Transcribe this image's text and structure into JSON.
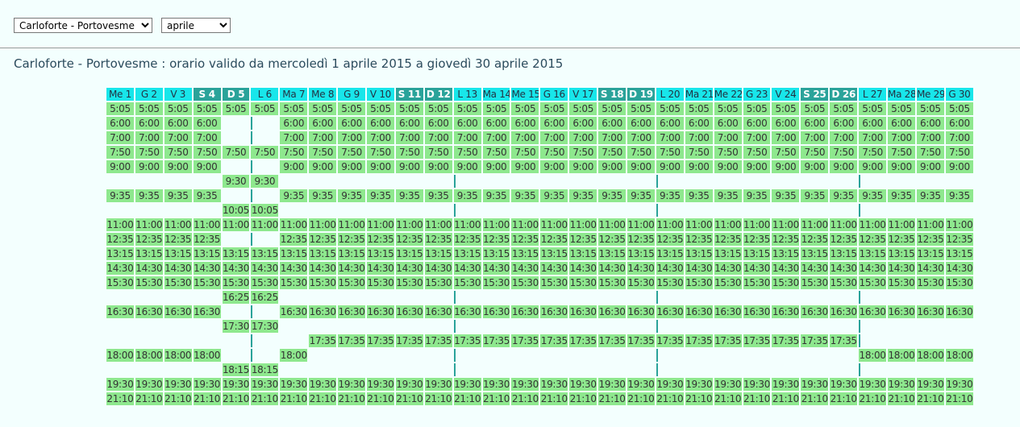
{
  "controls": {
    "route": "Carloforte - Portovesme",
    "month": "aprile"
  },
  "title": "Carloforte - Portovesme : orario valido da mercoledì 1 aprile 2015 a giovedì 30 aprile 2015",
  "table": {
    "columns": [
      "Me 1",
      "G 2",
      "V 3",
      "S 4",
      "D 5",
      "L 6",
      "Ma 7",
      "Me 8",
      "G 9",
      "V 10",
      "S 11",
      "D 12",
      "L 13",
      "Ma 14",
      "Me 15",
      "G 16",
      "V 17",
      "S 18",
      "D 19",
      "L 20",
      "Ma 21",
      "Me 22",
      "G 23",
      "V 24",
      "S 25",
      "D 26",
      "L 27",
      "Ma 28",
      "Me 29",
      "G 30"
    ],
    "rows": [
      [
        "5:05",
        "5:05",
        "5:05",
        "5:05",
        "5:05",
        "5:05",
        "5:05",
        "5:05",
        "5:05",
        "5:05",
        "5:05",
        "5:05",
        "5:05",
        "5:05",
        "5:05",
        "5:05",
        "5:05",
        "5:05",
        "5:05",
        "5:05",
        "5:05",
        "5:05",
        "5:05",
        "5:05",
        "5:05",
        "5:05",
        "5:05",
        "5:05",
        "5:05",
        "5:05"
      ],
      [
        "6:00",
        "6:00",
        "6:00",
        "6:00",
        null,
        null,
        "6:00",
        "6:00",
        "6:00",
        "6:00",
        "6:00",
        "6:00",
        "6:00",
        "6:00",
        "6:00",
        "6:00",
        "6:00",
        "6:00",
        "6:00",
        "6:00",
        "6:00",
        "6:00",
        "6:00",
        "6:00",
        "6:00",
        "6:00",
        "6:00",
        "6:00",
        "6:00",
        "6:00"
      ],
      [
        "7:00",
        "7:00",
        "7:00",
        "7:00",
        null,
        null,
        "7:00",
        "7:00",
        "7:00",
        "7:00",
        "7:00",
        "7:00",
        "7:00",
        "7:00",
        "7:00",
        "7:00",
        "7:00",
        "7:00",
        "7:00",
        "7:00",
        "7:00",
        "7:00",
        "7:00",
        "7:00",
        "7:00",
        "7:00",
        "7:00",
        "7:00",
        "7:00",
        "7:00"
      ],
      [
        "7:50",
        "7:50",
        "7:50",
        "7:50",
        "7:50",
        "7:50",
        "7:50",
        "7:50",
        "7:50",
        "7:50",
        "7:50",
        "7:50",
        "7:50",
        "7:50",
        "7:50",
        "7:50",
        "7:50",
        "7:50",
        "7:50",
        "7:50",
        "7:50",
        "7:50",
        "7:50",
        "7:50",
        "7:50",
        "7:50",
        "7:50",
        "7:50",
        "7:50",
        "7:50"
      ],
      [
        "9:00",
        "9:00",
        "9:00",
        "9:00",
        null,
        null,
        "9:00",
        "9:00",
        "9:00",
        "9:00",
        "9:00",
        "9:00",
        "9:00",
        "9:00",
        "9:00",
        "9:00",
        "9:00",
        "9:00",
        "9:00",
        "9:00",
        "9:00",
        "9:00",
        "9:00",
        "9:00",
        "9:00",
        "9:00",
        "9:00",
        "9:00",
        "9:00",
        "9:00"
      ],
      [
        null,
        null,
        null,
        null,
        "9:30",
        "9:30",
        null,
        null,
        null,
        null,
        null,
        null,
        null,
        null,
        null,
        null,
        null,
        null,
        null,
        null,
        null,
        null,
        null,
        null,
        null,
        null,
        null,
        null,
        null,
        null
      ],
      [
        "9:35",
        "9:35",
        "9:35",
        "9:35",
        null,
        null,
        "9:35",
        "9:35",
        "9:35",
        "9:35",
        "9:35",
        "9:35",
        "9:35",
        "9:35",
        "9:35",
        "9:35",
        "9:35",
        "9:35",
        "9:35",
        "9:35",
        "9:35",
        "9:35",
        "9:35",
        "9:35",
        "9:35",
        "9:35",
        "9:35",
        "9:35",
        "9:35",
        "9:35"
      ],
      [
        null,
        null,
        null,
        null,
        "10:05",
        "10:05",
        null,
        null,
        null,
        null,
        null,
        null,
        null,
        null,
        null,
        null,
        null,
        null,
        null,
        null,
        null,
        null,
        null,
        null,
        null,
        null,
        null,
        null,
        null,
        null
      ],
      [
        "11:00",
        "11:00",
        "11:00",
        "11:00",
        "11:00",
        "11:00",
        "11:00",
        "11:00",
        "11:00",
        "11:00",
        "11:00",
        "11:00",
        "11:00",
        "11:00",
        "11:00",
        "11:00",
        "11:00",
        "11:00",
        "11:00",
        "11:00",
        "11:00",
        "11:00",
        "11:00",
        "11:00",
        "11:00",
        "11:00",
        "11:00",
        "11:00",
        "11:00",
        "11:00"
      ],
      [
        "12:35",
        "12:35",
        "12:35",
        "12:35",
        null,
        null,
        "12:35",
        "12:35",
        "12:35",
        "12:35",
        "12:35",
        "12:35",
        "12:35",
        "12:35",
        "12:35",
        "12:35",
        "12:35",
        "12:35",
        "12:35",
        "12:35",
        "12:35",
        "12:35",
        "12:35",
        "12:35",
        "12:35",
        "12:35",
        "12:35",
        "12:35",
        "12:35",
        "12:35"
      ],
      [
        "13:15",
        "13:15",
        "13:15",
        "13:15",
        "13:15",
        "13:15",
        "13:15",
        "13:15",
        "13:15",
        "13:15",
        "13:15",
        "13:15",
        "13:15",
        "13:15",
        "13:15",
        "13:15",
        "13:15",
        "13:15",
        "13:15",
        "13:15",
        "13:15",
        "13:15",
        "13:15",
        "13:15",
        "13:15",
        "13:15",
        "13:15",
        "13:15",
        "13:15",
        "13:15"
      ],
      [
        "14:30",
        "14:30",
        "14:30",
        "14:30",
        "14:30",
        "14:30",
        "14:30",
        "14:30",
        "14:30",
        "14:30",
        "14:30",
        "14:30",
        "14:30",
        "14:30",
        "14:30",
        "14:30",
        "14:30",
        "14:30",
        "14:30",
        "14:30",
        "14:30",
        "14:30",
        "14:30",
        "14:30",
        "14:30",
        "14:30",
        "14:30",
        "14:30",
        "14:30",
        "14:30"
      ],
      [
        "15:30",
        "15:30",
        "15:30",
        "15:30",
        "15:30",
        "15:30",
        "15:30",
        "15:30",
        "15:30",
        "15:30",
        "15:30",
        "15:30",
        "15:30",
        "15:30",
        "15:30",
        "15:30",
        "15:30",
        "15:30",
        "15:30",
        "15:30",
        "15:30",
        "15:30",
        "15:30",
        "15:30",
        "15:30",
        "15:30",
        "15:30",
        "15:30",
        "15:30",
        "15:30"
      ],
      [
        null,
        null,
        null,
        null,
        "16:25",
        "16:25",
        null,
        null,
        null,
        null,
        null,
        null,
        null,
        null,
        null,
        null,
        null,
        null,
        null,
        null,
        null,
        null,
        null,
        null,
        null,
        null,
        null,
        null,
        null,
        null
      ],
      [
        "16:30",
        "16:30",
        "16:30",
        "16:30",
        null,
        null,
        "16:30",
        "16:30",
        "16:30",
        "16:30",
        "16:30",
        "16:30",
        "16:30",
        "16:30",
        "16:30",
        "16:30",
        "16:30",
        "16:30",
        "16:30",
        "16:30",
        "16:30",
        "16:30",
        "16:30",
        "16:30",
        "16:30",
        "16:30",
        "16:30",
        "16:30",
        "16:30",
        "16:30"
      ],
      [
        null,
        null,
        null,
        null,
        "17:30",
        "17:30",
        null,
        null,
        null,
        null,
        null,
        null,
        null,
        null,
        null,
        null,
        null,
        null,
        null,
        null,
        null,
        null,
        null,
        null,
        null,
        null,
        null,
        null,
        null,
        null
      ],
      [
        null,
        null,
        null,
        null,
        null,
        null,
        null,
        "17:35",
        "17:35",
        "17:35",
        "17:35",
        "17:35",
        "17:35",
        "17:35",
        "17:35",
        "17:35",
        "17:35",
        "17:35",
        "17:35",
        "17:35",
        "17:35",
        "17:35",
        "17:35",
        "17:35",
        "17:35",
        "17:35",
        null,
        null,
        null,
        null
      ],
      [
        "18:00",
        "18:00",
        "18:00",
        "18:00",
        null,
        null,
        "18:00",
        null,
        null,
        null,
        null,
        null,
        null,
        null,
        null,
        null,
        null,
        null,
        null,
        null,
        null,
        null,
        null,
        null,
        null,
        null,
        "18:00",
        "18:00",
        "18:00",
        "18:00"
      ],
      [
        null,
        null,
        null,
        null,
        "18:15",
        "18:15",
        null,
        null,
        null,
        null,
        null,
        null,
        null,
        null,
        null,
        null,
        null,
        null,
        null,
        null,
        null,
        null,
        null,
        null,
        null,
        null,
        null,
        null,
        null,
        null
      ],
      [
        "19:30",
        "19:30",
        "19:30",
        "19:30",
        "19:30",
        "19:30",
        "19:30",
        "19:30",
        "19:30",
        "19:30",
        "19:30",
        "19:30",
        "19:30",
        "19:30",
        "19:30",
        "19:30",
        "19:30",
        "19:30",
        "19:30",
        "19:30",
        "19:30",
        "19:30",
        "19:30",
        "19:30",
        "19:30",
        "19:30",
        "19:30",
        "19:30",
        "19:30",
        "19:30"
      ],
      [
        "21:10",
        "21:10",
        "21:10",
        "21:10",
        "21:10",
        "21:10",
        "21:10",
        "21:10",
        "21:10",
        "21:10",
        "21:10",
        "21:10",
        "21:10",
        "21:10",
        "21:10",
        "21:10",
        "21:10",
        "21:10",
        "21:10",
        "21:10",
        "21:10",
        "21:10",
        "21:10",
        "21:10",
        "21:10",
        "21:10",
        "21:10",
        "21:10",
        "21:10",
        "21:10"
      ]
    ]
  }
}
